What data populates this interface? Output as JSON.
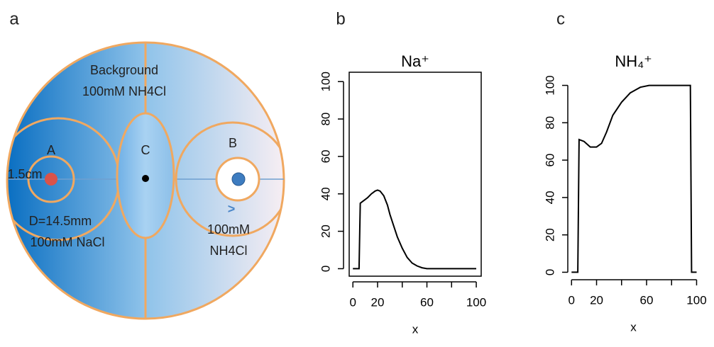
{
  "diagram": {
    "panel": "a",
    "background": "Background",
    "background_solution": "100mM NH4Cl",
    "well_a": "A",
    "well_b": "B",
    "well_c": "C",
    "radius_label": "1.5cm",
    "diameter_label": "D=14.5mm",
    "a_solution": "100mM NaCl",
    "b_solution_1": "100mM",
    "b_solution_2": "NH4Cl",
    "arrow": ">"
  },
  "chart_data": [
    {
      "type": "line",
      "panel": "b",
      "title": "Na⁺",
      "x_label": "x",
      "box": true,
      "color": "#000000",
      "x": [
        0,
        5,
        6,
        8,
        10,
        12,
        15,
        18,
        20,
        22,
        25,
        28,
        30,
        33,
        36,
        40,
        44,
        48,
        52,
        56,
        60,
        70,
        80,
        90,
        100
      ],
      "values": [
        0,
        0,
        35,
        36,
        37,
        38,
        40,
        41.5,
        42,
        41.5,
        39,
        34,
        29,
        23,
        17,
        11,
        6,
        3,
        1.5,
        0.5,
        0,
        0,
        0,
        0,
        0
      ],
      "xlim": [
        -3,
        104
      ],
      "ylim": [
        -4,
        105
      ],
      "xticks": [
        0,
        20,
        {
          "value": 40,
          "label": null
        },
        60,
        {
          "value": 80,
          "label": null
        },
        100
      ],
      "yticks": [
        0,
        20,
        40,
        60,
        80,
        100
      ]
    },
    {
      "type": "line",
      "panel": "c",
      "title": "NH₄⁺",
      "x_label": "x",
      "box": false,
      "color": "#000000",
      "x": [
        0,
        5,
        6,
        10,
        15,
        20,
        24,
        28,
        33,
        40,
        47,
        55,
        62,
        70,
        80,
        90,
        95,
        96,
        100
      ],
      "values": [
        0,
        0,
        71,
        70,
        67,
        67,
        69,
        75,
        84,
        91,
        96,
        99,
        100,
        100,
        100,
        100,
        100,
        0,
        0
      ],
      "xlim": [
        -3,
        102
      ],
      "ylim": [
        -4,
        104
      ],
      "xticks": [
        0,
        20,
        {
          "value": 40,
          "label": null
        },
        60,
        {
          "value": 80,
          "label": null
        },
        100
      ],
      "yticks": [
        0,
        20,
        40,
        60,
        80,
        100
      ]
    }
  ]
}
